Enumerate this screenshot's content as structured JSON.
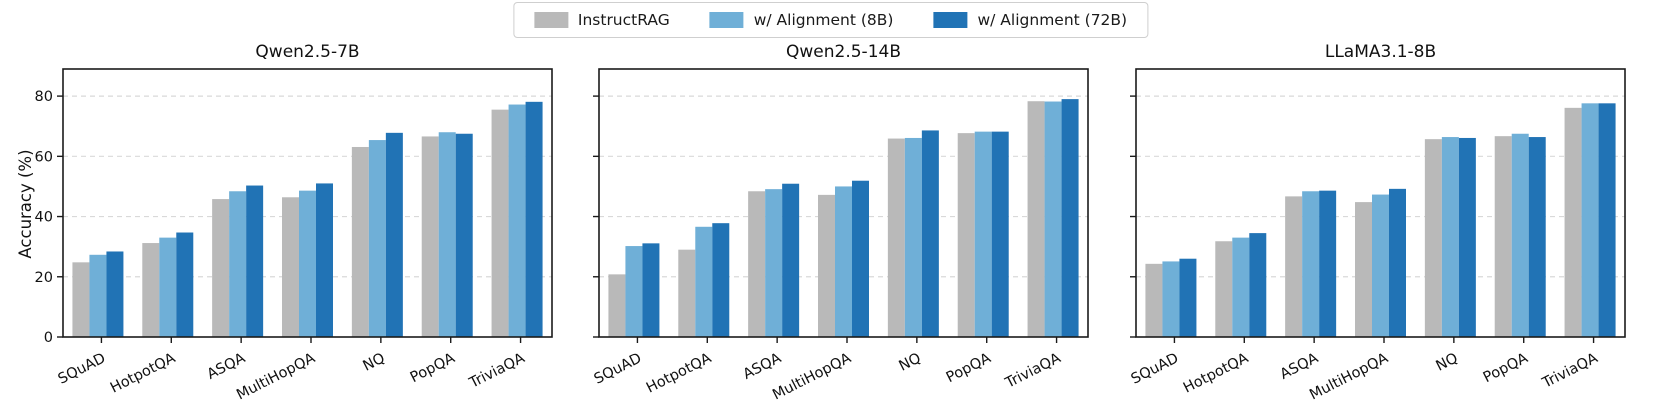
{
  "legend": {
    "items": [
      {
        "label": "InstructRAG",
        "color": "#b9b9b9"
      },
      {
        "label": "w/ Alignment (8B)",
        "color": "#6fafd7"
      },
      {
        "label": "w/ Alignment (72B)",
        "color": "#2173b5"
      }
    ],
    "position": "top-center"
  },
  "chart_data": [
    {
      "type": "bar",
      "title": "Qwen2.5-7B",
      "ylabel": "Accuracy (%)",
      "xlabel": "",
      "categories": [
        "SQuAD",
        "HotpotQA",
        "ASQA",
        "MultiHopQA",
        "NQ",
        "PopQA",
        "TriviaQA"
      ],
      "series": [
        {
          "name": "InstructRAG",
          "values": [
            24.8,
            31.2,
            45.8,
            46.4,
            63.1,
            66.6,
            75.5
          ]
        },
        {
          "name": "w/ Alignment (8B)",
          "values": [
            27.3,
            33.0,
            48.4,
            48.6,
            65.4,
            68.0,
            77.2
          ]
        },
        {
          "name": "w/ Alignment (72B)",
          "values": [
            28.4,
            34.7,
            50.3,
            51.0,
            67.8,
            67.5,
            78.1
          ]
        }
      ],
      "ylim": [
        0,
        89
      ],
      "yticks": [
        0,
        20,
        40,
        60,
        80
      ],
      "grid": true,
      "show_ytick_labels": true
    },
    {
      "type": "bar",
      "title": "Qwen2.5-14B",
      "ylabel": "",
      "xlabel": "",
      "categories": [
        "SQuAD",
        "HotpotQA",
        "ASQA",
        "MultiHopQA",
        "NQ",
        "PopQA",
        "TriviaQA"
      ],
      "series": [
        {
          "name": "InstructRAG",
          "values": [
            20.8,
            29.0,
            48.4,
            47.2,
            65.9,
            67.7,
            78.3
          ]
        },
        {
          "name": "w/ Alignment (8B)",
          "values": [
            30.2,
            36.6,
            49.1,
            50.0,
            66.1,
            68.2,
            78.2
          ]
        },
        {
          "name": "w/ Alignment (72B)",
          "values": [
            31.1,
            37.8,
            50.9,
            51.9,
            68.6,
            68.2,
            79.0
          ]
        }
      ],
      "ylim": [
        0,
        89
      ],
      "yticks": [
        0,
        20,
        40,
        60,
        80
      ],
      "grid": true,
      "show_ytick_labels": false
    },
    {
      "type": "bar",
      "title": "LLaMA3.1-8B",
      "ylabel": "",
      "xlabel": "",
      "categories": [
        "SQuAD",
        "HotpotQA",
        "ASQA",
        "MultiHopQA",
        "NQ",
        "PopQA",
        "TriviaQA"
      ],
      "series": [
        {
          "name": "InstructRAG",
          "values": [
            24.3,
            31.8,
            46.7,
            44.8,
            65.7,
            66.7,
            76.1
          ]
        },
        {
          "name": "w/ Alignment (8B)",
          "values": [
            25.1,
            33.0,
            48.4,
            47.3,
            66.4,
            67.5,
            77.6
          ]
        },
        {
          "name": "w/ Alignment (72B)",
          "values": [
            26.0,
            34.5,
            48.6,
            49.2,
            66.1,
            66.4,
            77.6
          ]
        }
      ],
      "ylim": [
        0,
        89
      ],
      "yticks": [
        0,
        20,
        40,
        60,
        80
      ],
      "grid": true,
      "show_ytick_labels": false
    }
  ]
}
